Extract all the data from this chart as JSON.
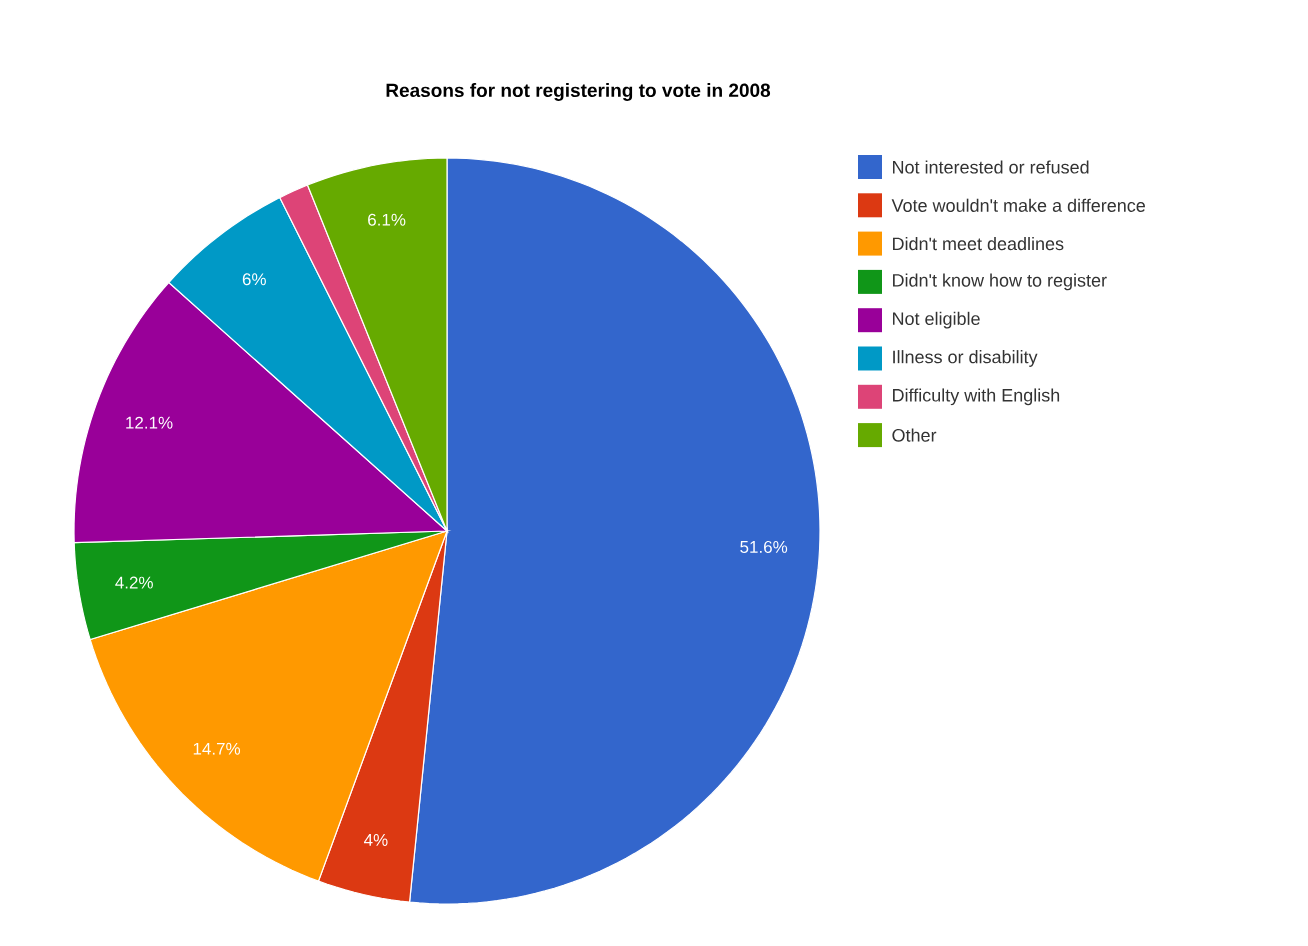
{
  "chart_data": {
    "type": "pie",
    "title": "Reasons for not registering to vote in 2008",
    "categories": [
      "Not interested or refused",
      "Vote wouldn't make a difference",
      "Didn't meet deadlines",
      "Didn't know how to register",
      "Not eligible",
      "Illness or disability",
      "Difficulty with English",
      "Other"
    ],
    "values": [
      51.6,
      4,
      14.7,
      4.2,
      12.1,
      6,
      1.3,
      6.1
    ],
    "colors": [
      "#3366cc",
      "#dc3912",
      "#ff9900",
      "#109618",
      "#990099",
      "#0099c6",
      "#dd4477",
      "#66aa00"
    ],
    "value_labels": [
      "51.6%",
      "4%",
      "14.7%",
      "4.2%",
      "12.1%",
      "6%",
      null,
      "6.1%"
    ],
    "legend": "right"
  }
}
